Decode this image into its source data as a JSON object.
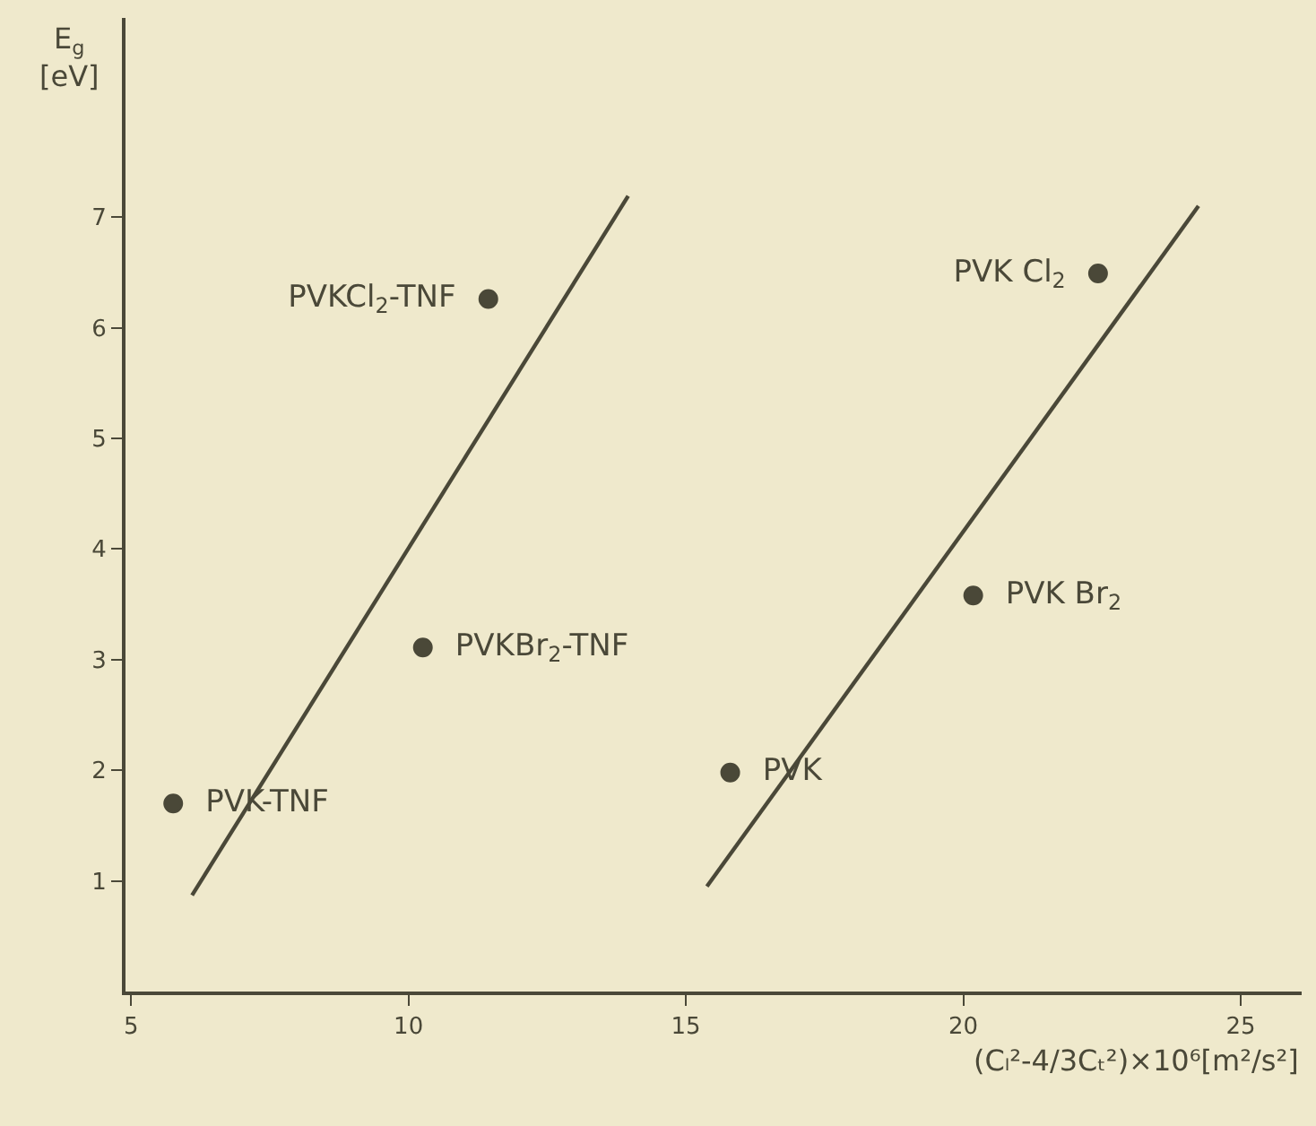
{
  "chart_data": {
    "type": "scatter",
    "xlabel": "(Cₗ²-4/3Cₜ²)×10⁶[m²/s²]",
    "ylabel": "E$_{g}$\n[eV]",
    "xlim": [
      4.9,
      26.1
    ],
    "xticks": [
      5,
      10,
      15,
      20,
      25
    ],
    "ylim": [
      0,
      8.8
    ],
    "yticks": [
      1,
      2,
      3,
      4,
      5,
      6,
      7
    ],
    "grid": false,
    "series": [
      {
        "name": "PVK-TNF",
        "color": "#4a4838",
        "x": [
          5.76
        ],
        "values": [
          1.7
        ],
        "marker": "circle"
      },
      {
        "name": "PVKBr$_{2}$-TNF",
        "color": "#4a4838",
        "x": [
          10.26
        ],
        "values": [
          3.11
        ],
        "marker": "circle"
      },
      {
        "name": "PVKCl$_{2}$-TNF",
        "color": "#4a4838",
        "x": [
          11.44
        ],
        "values": [
          6.26
        ],
        "marker": "circle"
      },
      {
        "name": "PVK",
        "color": "#4a4838",
        "x": [
          15.8
        ],
        "values": [
          1.98
        ],
        "marker": "circle"
      },
      {
        "name": "PVK Br$_{2}$",
        "color": "#4a4838",
        "x": [
          20.18
        ],
        "values": [
          3.58
        ],
        "marker": "circle"
      },
      {
        "name": "PVK Cl$_{2}$",
        "color": "#4a4838",
        "x": [
          22.43
        ],
        "values": [
          6.49
        ],
        "marker": "circle"
      },
      {
        "type": "line",
        "color": "#4a4838",
        "line_style": "solid",
        "x": [
          6.1,
          13.96
        ],
        "values": [
          0.87,
          7.19
        ]
      },
      {
        "type": "line",
        "color": "#4a4838",
        "line_style": "solid",
        "x": [
          15.38,
          24.24
        ],
        "values": [
          0.95,
          7.1
        ]
      }
    ]
  }
}
